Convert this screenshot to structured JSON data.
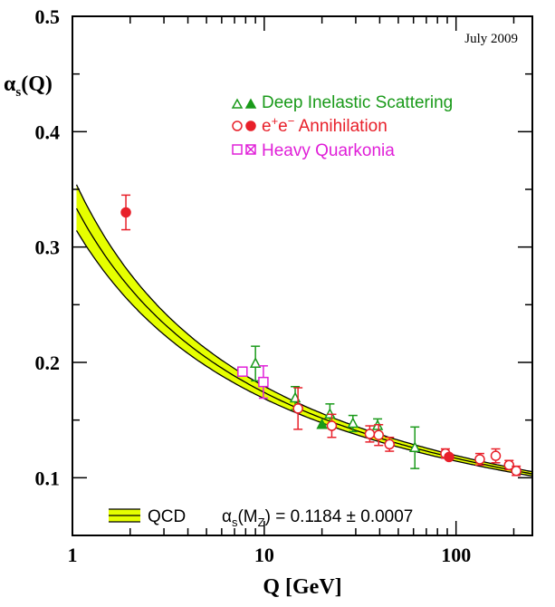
{
  "chart_data": {
    "type": "scatter",
    "annotation": "July 2009",
    "ylabel_main": "α",
    "ylabel_sub": "s",
    "ylabel_tail": "(Q)",
    "xlabel": "Q [GeV]",
    "x_scale": "log",
    "xlim": [
      1,
      250
    ],
    "ylim": [
      0.05,
      0.5
    ],
    "x_ticks": [
      1,
      10,
      100
    ],
    "x_tick_labels": [
      "1",
      "10",
      "100"
    ],
    "y_ticks": [
      0.1,
      0.2,
      0.3,
      0.4,
      0.5
    ],
    "y_tick_labels": [
      "0.1",
      "0.2",
      "0.3",
      "0.4",
      "0.5"
    ],
    "legend_position": "top-right",
    "legend": [
      {
        "label": "Deep Inelastic Scattering",
        "color": "#1a9a1a",
        "markers": [
          "open-triangle",
          "filled-triangle"
        ]
      },
      {
        "label_parts": [
          "e",
          "+",
          "e",
          "−",
          " Annihilation"
        ],
        "color": "#e8202a",
        "markers": [
          "open-circle",
          "filled-circle"
        ]
      },
      {
        "label": "Heavy Quarkonia",
        "color": "#e020d8",
        "markers": [
          "open-square",
          "crossed-square"
        ]
      }
    ],
    "band": {
      "label": "QCD",
      "formula_alpha": "α",
      "formula_sub1": "s",
      "formula_open": "(M",
      "formula_sub2": "Z",
      "formula_close": ") = 0.1184 ± 0.0007",
      "alpha_mz": 0.1184,
      "mz": 91.19,
      "width": 0.0007,
      "fill_color": "#e6ff00"
    },
    "series": [
      {
        "name": "Deep Inelastic Scattering",
        "color": "#1a9a1a",
        "points": [
          {
            "x": 9.0,
            "y": 0.199,
            "err": 0.015,
            "marker": "open-triangle"
          },
          {
            "x": 14.5,
            "y": 0.169,
            "err": 0.01,
            "marker": "open-triangle"
          },
          {
            "x": 20.0,
            "y": 0.146,
            "err": 0.0,
            "marker": "filled-triangle"
          },
          {
            "x": 22.0,
            "y": 0.155,
            "err": 0.009,
            "marker": "open-triangle"
          },
          {
            "x": 29.0,
            "y": 0.147,
            "err": 0.007,
            "marker": "open-triangle"
          },
          {
            "x": 39.0,
            "y": 0.145,
            "err": 0.006,
            "marker": "open-triangle"
          },
          {
            "x": 61.0,
            "y": 0.126,
            "err": 0.018,
            "marker": "open-triangle"
          }
        ]
      },
      {
        "name": "e+e- Annihilation",
        "color": "#e8202a",
        "points": [
          {
            "x": 1.9,
            "y": 0.33,
            "err": 0.015,
            "marker": "filled-circle"
          },
          {
            "x": 15.0,
            "y": 0.16,
            "err": 0.018,
            "marker": "open-circle"
          },
          {
            "x": 22.5,
            "y": 0.145,
            "err": 0.01,
            "marker": "open-circle"
          },
          {
            "x": 35.5,
            "y": 0.138,
            "err": 0.007,
            "marker": "open-circle"
          },
          {
            "x": 39.5,
            "y": 0.137,
            "err": 0.009,
            "marker": "open-circle"
          },
          {
            "x": 45.0,
            "y": 0.129,
            "err": 0.006,
            "marker": "open-circle"
          },
          {
            "x": 88.0,
            "y": 0.121,
            "err": 0.004,
            "marker": "open-circle"
          },
          {
            "x": 92.0,
            "y": 0.118,
            "err": 0.002,
            "marker": "filled-circle"
          },
          {
            "x": 133.0,
            "y": 0.116,
            "err": 0.005,
            "marker": "open-circle"
          },
          {
            "x": 161.0,
            "y": 0.119,
            "err": 0.006,
            "marker": "open-circle"
          },
          {
            "x": 189.0,
            "y": 0.111,
            "err": 0.004,
            "marker": "open-circle"
          },
          {
            "x": 206.0,
            "y": 0.106,
            "err": 0.004,
            "marker": "open-circle"
          }
        ]
      },
      {
        "name": "Heavy Quarkonia",
        "color": "#e020d8",
        "points": [
          {
            "x": 7.7,
            "y": 0.192,
            "err": 0.003,
            "marker": "open-square"
          },
          {
            "x": 9.9,
            "y": 0.183,
            "err": 0.014,
            "marker": "open-square"
          }
        ]
      }
    ]
  }
}
